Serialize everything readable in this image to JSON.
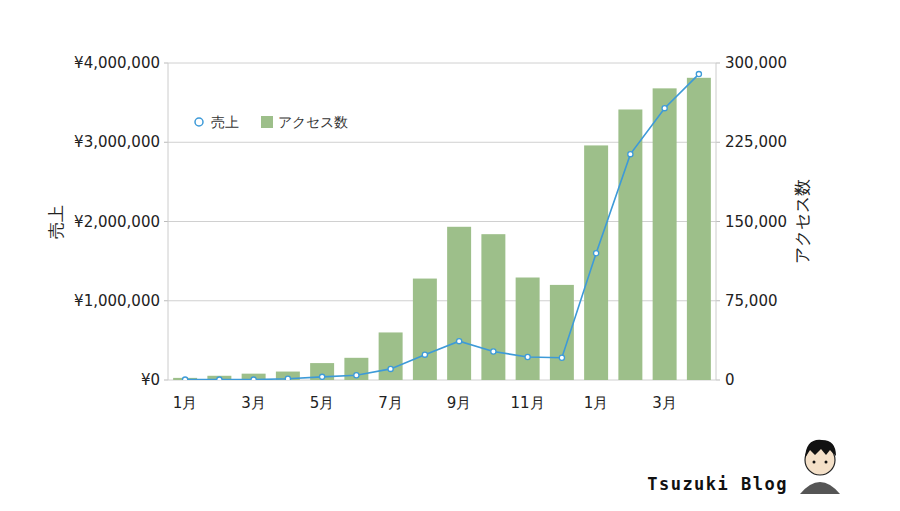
{
  "chart_data": {
    "type": "bar",
    "categories": [
      "1月",
      null,
      "3月",
      null,
      "5月",
      null,
      "7月",
      null,
      "9月",
      null,
      "11月",
      null,
      "1月",
      null,
      "3月",
      null
    ],
    "series": [
      {
        "name": "売上",
        "type": "line",
        "color": "#3d9ad8",
        "marker": "circle",
        "values": [
          5000,
          5000,
          5000,
          15000,
          40000,
          60000,
          140000,
          320000,
          490000,
          360000,
          290000,
          280000,
          1600000,
          2850000,
          3430000,
          3860000
        ]
      },
      {
        "name": "アクセス数",
        "type": "bar",
        "axis": "y2",
        "color": "#9dbf8a",
        "values": [
          2000,
          4000,
          6000,
          8000,
          16000,
          21000,
          45000,
          96000,
          145000,
          138000,
          97000,
          90000,
          222000,
          256000,
          276000,
          286000
        ]
      }
    ],
    "y_label": "売上",
    "y2_label": "アクセス数",
    "ylim": [
      0,
      4000000
    ],
    "yticks": [
      {
        "value": 0,
        "label": "¥0"
      },
      {
        "value": 1000000,
        "label": "¥1,000,000"
      },
      {
        "value": 2000000,
        "label": "¥2,000,000"
      },
      {
        "value": 3000000,
        "label": "¥3,000,000"
      },
      {
        "value": 4000000,
        "label": "¥4,000,000"
      }
    ],
    "y2lim": [
      0,
      300000
    ],
    "y2ticks": [
      0,
      {
        "value": 75000,
        "label": "75,000"
      },
      {
        "value": 150000,
        "label": "150,000"
      },
      {
        "value": 225000,
        "label": "225,000"
      },
      {
        "value": 300000,
        "label": "300,000"
      }
    ],
    "grid": true,
    "legend": "upper left",
    "annotations": [
      {
        "text": "Tsuzuki Blog"
      }
    ]
  }
}
